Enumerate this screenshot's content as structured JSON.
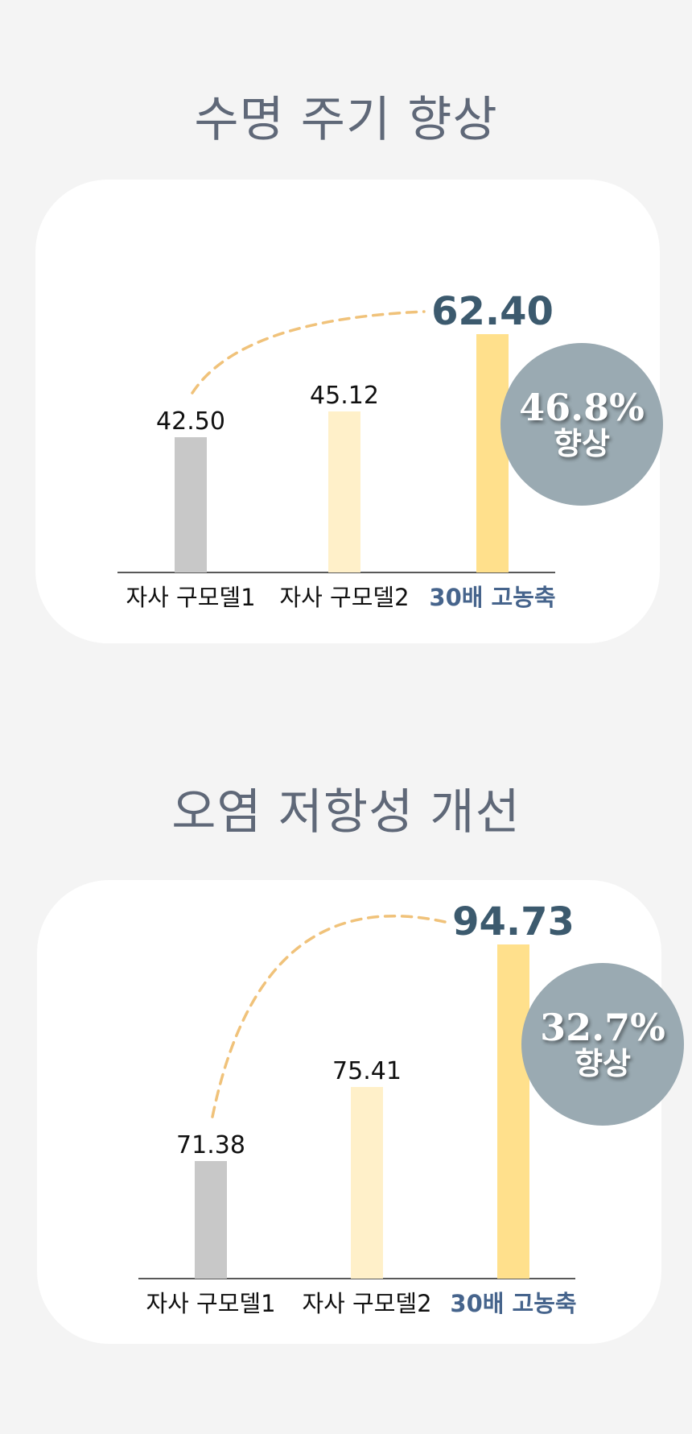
{
  "colors": {
    "background": "#f4f4f4",
    "card": "#ffffff",
    "bar_old1": "#c8c8c8",
    "bar_old2": "#fff0c9",
    "bar_new": "#ffe08c",
    "highlight_value": "#3c5a6e",
    "highlight_label": "#46648c",
    "curve": "#f0c27a",
    "badge": "#9aaab2"
  },
  "sections": [
    {
      "title": "수명 주기 향상",
      "badge": {
        "percent": "46.8%",
        "label": "향상"
      }
    },
    {
      "title": "오염 저항성 개선",
      "badge": {
        "percent": "32.7%",
        "label": "향상"
      }
    }
  ],
  "chart_data": [
    {
      "type": "bar",
      "categories": [
        "자사 구모델1",
        "자사 구모델2",
        "30배 고농축"
      ],
      "values": [
        42.5,
        45.12,
        62.4
      ],
      "value_labels": [
        "42.50",
        "45.12",
        "62.40"
      ],
      "highlight_index": 2,
      "annotation": "46.8% 향상",
      "grid": false
    },
    {
      "type": "bar",
      "categories": [
        "자사 구모델1",
        "자사 구모델2",
        "30배 고농축"
      ],
      "values": [
        71.38,
        75.41,
        94.73
      ],
      "value_labels": [
        "71.38",
        "75.41",
        "94.73"
      ],
      "highlight_index": 2,
      "annotation": "32.7% 향상",
      "grid": false
    }
  ]
}
